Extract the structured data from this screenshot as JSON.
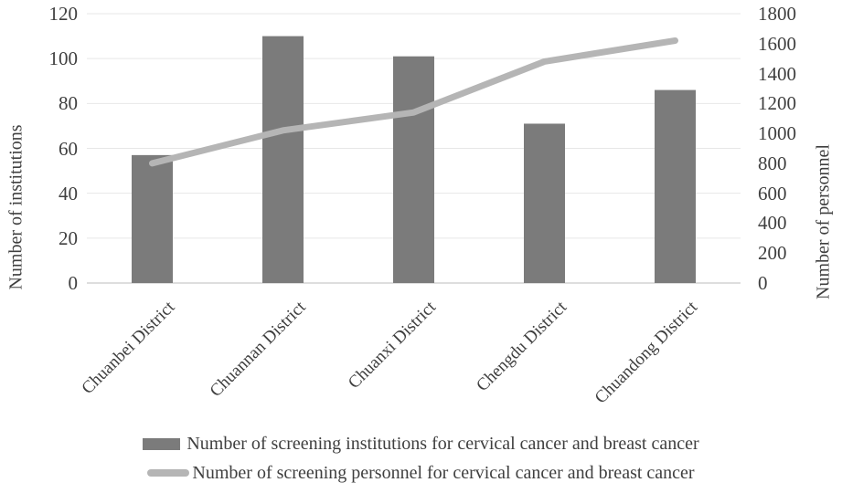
{
  "chart_data": {
    "type": "bar+line combo",
    "categories": [
      "Chuanbei District",
      "Chuannan District",
      "Chuanxi District",
      "Chengdu District",
      "Chuandong District"
    ],
    "series": [
      {
        "name": "Number of screening institutions for cervical cancer and breast cancer",
        "type": "bar",
        "axis": "left",
        "values": [
          57,
          110,
          101,
          71,
          86
        ],
        "color": "#7b7b7b"
      },
      {
        "name": "Number of screening personnel for cervical cancer and breast cancer",
        "type": "line",
        "axis": "right",
        "values": [
          800,
          1020,
          1140,
          1480,
          1620
        ],
        "color": "#b5b5b5"
      }
    ],
    "left_axis": {
      "title": "Number of institutions",
      "min": 0,
      "max": 120,
      "step": 20
    },
    "right_axis": {
      "title": "Number of personnel",
      "min": 0,
      "max": 1800,
      "step": 200
    },
    "grid": "horizontal",
    "legend_position": "bottom",
    "colors": {
      "gridline": "#e7e7e7",
      "axis_line": "#bcbcbc",
      "text": "#3f3f3f"
    }
  }
}
